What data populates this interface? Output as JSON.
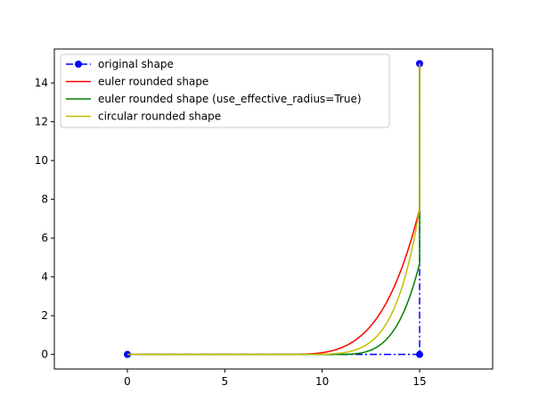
{
  "chart_data": {
    "type": "line",
    "title": "",
    "xlabel": "",
    "ylabel": "",
    "xlim": [
      -3.75,
      18.75
    ],
    "ylim": [
      -0.75,
      15.75
    ],
    "xticks": [
      0,
      5,
      10,
      15
    ],
    "yticks": [
      0,
      2,
      4,
      6,
      8,
      10,
      12,
      14
    ],
    "grid": false,
    "legend_position": "top-left",
    "series": [
      {
        "name": "original shape",
        "color": "#0000ff",
        "style": "dashdot",
        "marker": "circle",
        "x": [
          0,
          15,
          15
        ],
        "y": [
          0,
          0,
          15
        ]
      },
      {
        "name": "euler rounded shape",
        "color": "#ff0000",
        "style": "solid",
        "curve": {
          "start_x": 7.5,
          "end_y": 7.5,
          "power": 4
        },
        "x": [
          0,
          7.5,
          10,
          12,
          13,
          14,
          14.5,
          15,
          15
        ],
        "y": [
          0,
          0,
          0.3,
          1,
          1.7,
          3,
          4.2,
          7.5,
          15
        ]
      },
      {
        "name": "euler rounded shape (use_effective_radius=True)",
        "color": "#008000",
        "style": "solid",
        "curve": {
          "start_x": 10.3,
          "end_y": 4.7,
          "power": 4
        },
        "x": [
          0,
          10.3,
          12,
          13,
          14,
          14.5,
          15,
          15
        ],
        "y": [
          0,
          0,
          0.1,
          0.4,
          1.1,
          1.9,
          4.7,
          15
        ]
      },
      {
        "name": "circular rounded shape",
        "color": "#bfbf00",
        "style": "solid",
        "curve": {
          "start_x": 7.5,
          "end_y": 7.5,
          "power": 6
        },
        "x": [
          0,
          7.5,
          10,
          12,
          13.5,
          14.5,
          15,
          15
        ],
        "y": [
          0,
          0,
          0.1,
          0.4,
          1.2,
          2.7,
          7.5,
          15
        ]
      }
    ]
  }
}
